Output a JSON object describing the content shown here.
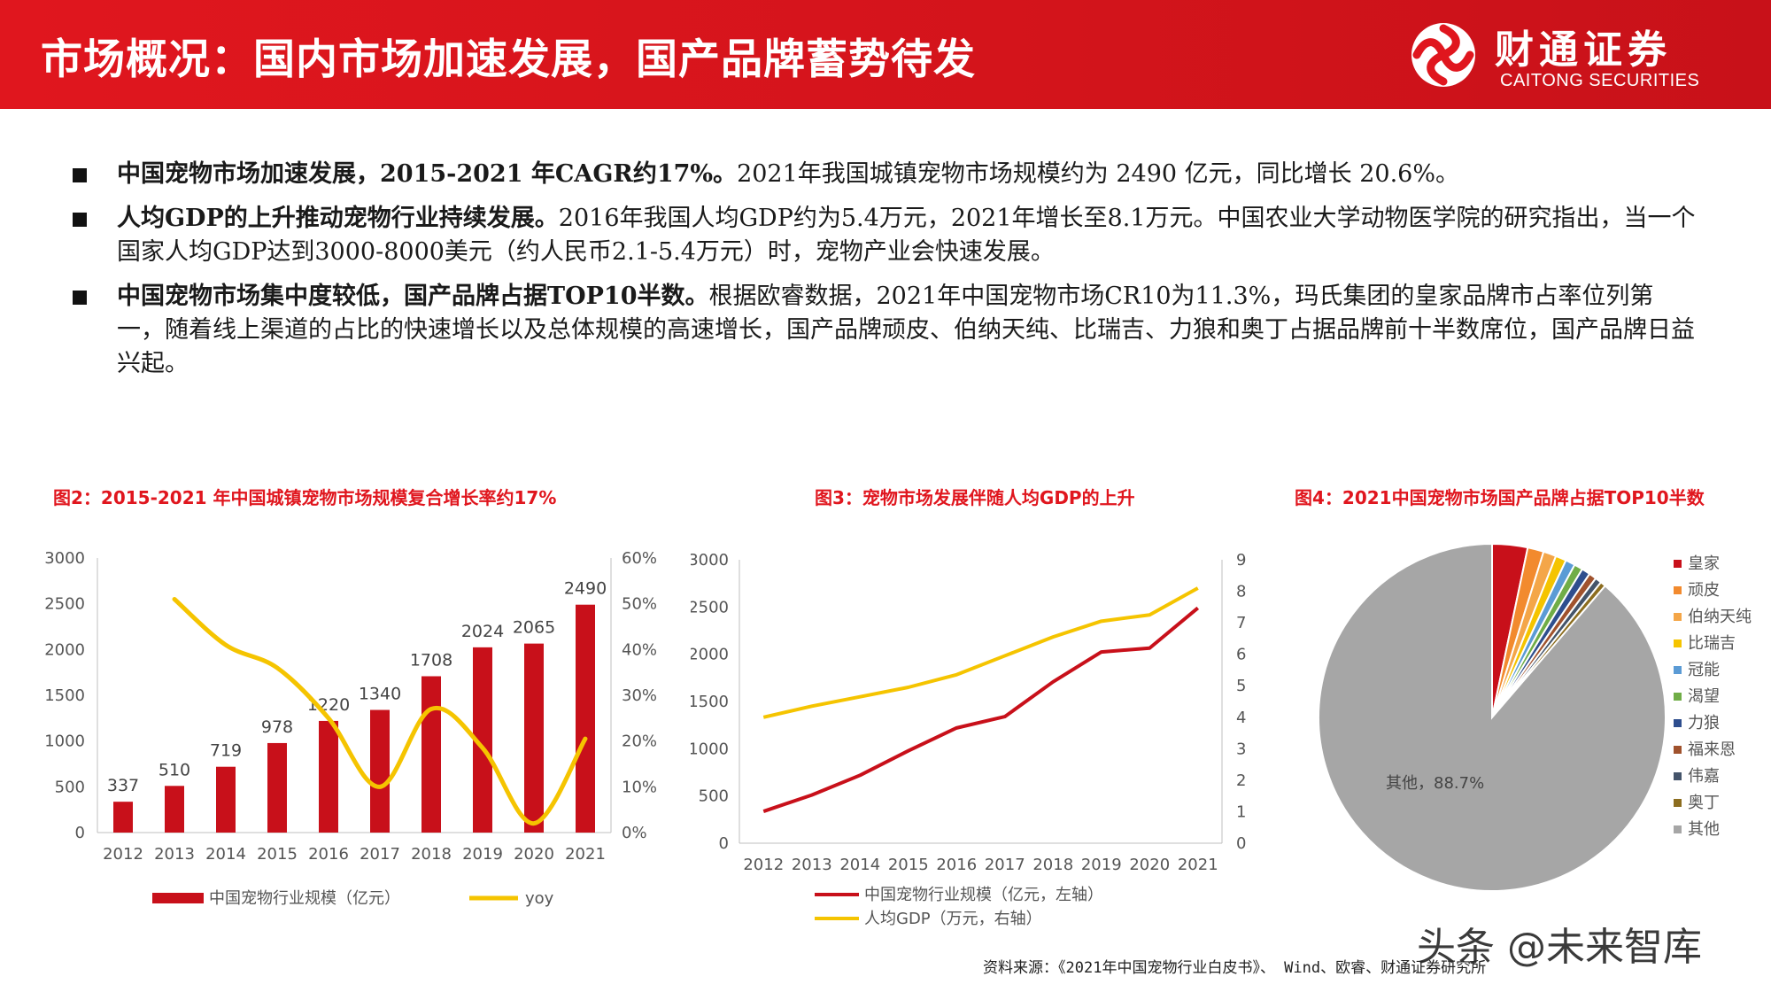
{
  "header": {
    "title": "市场概况：国内市场加速发展，国产品牌蓄势待发",
    "logo_cn": "财通证券",
    "logo_en": "CAITONG SECURITIES",
    "color": "#e0161e"
  },
  "bullets": [
    {
      "bold": "中国宠物市场加速发展，2015-2021 年CAGR约17%。",
      "text": "2021年我国城镇宠物市场规模约为 2490 亿元，同比增长 20.6%。"
    },
    {
      "bold": "人均GDP的上升推动宠物行业持续发展。",
      "text": "2016年我国人均GDP约为5.4万元，2021年增长至8.1万元。中国农业大学动物医学院的研究指出，当一个国家人均GDP达到3000-8000美元（约人民币2.1-5.4万元）时，宠物产业会快速发展。"
    },
    {
      "bold": "中国宠物市场集中度较低，国产品牌占据TOP10半数。",
      "text": "根据欧睿数据，2021年中国宠物市场CR10为11.3%，玛氏集团的皇家品牌市占率位列第一，随着线上渠道的占比的快速增长以及总体规模的高速增长，国产品牌顽皮、伯纳天纯、比瑞吉、力狼和奥丁占据品牌前十半数席位，国产品牌日益兴起。"
    }
  ],
  "figures": {
    "fig2_title": "图2：2015-2021 年中国城镇宠物市场规模复合增长率约17%",
    "fig3_title": "图3：宠物市场发展伴随人均GDP的上升",
    "fig4_title": "图4：2021中国宠物市场国产品牌占据TOP10半数"
  },
  "chart_data": [
    {
      "type": "bar",
      "title": "图2：2015-2021 年中国城镇宠物市场规模复合增长率约17%",
      "categories": [
        "2012",
        "2013",
        "2014",
        "2015",
        "2016",
        "2017",
        "2018",
        "2019",
        "2020",
        "2021"
      ],
      "series": [
        {
          "name": "中国宠物行业规模（亿元）",
          "type": "bar",
          "axis": "left",
          "color": "#c8101a",
          "values": [
            337,
            510,
            719,
            978,
            1220,
            1340,
            1708,
            2024,
            2065,
            2490
          ]
        },
        {
          "name": "yoy",
          "type": "line",
          "axis": "right",
          "color": "#f5c400",
          "values": [
            null,
            0.51,
            0.41,
            0.36,
            0.25,
            0.1,
            0.27,
            0.185,
            0.02,
            0.205
          ]
        }
      ],
      "y_left": {
        "ticks": [
          "0",
          "500",
          "1000",
          "1500",
          "2000",
          "2500",
          "3000"
        ],
        "range": [
          0,
          3000
        ]
      },
      "y_right": {
        "ticks": [
          "0%",
          "10%",
          "20%",
          "30%",
          "40%",
          "50%",
          "60%"
        ],
        "range": [
          0,
          0.6
        ]
      },
      "legend_position": "bottom"
    },
    {
      "type": "line",
      "title": "图3：宠物市场发展伴随人均GDP的上升",
      "categories": [
        "2012",
        "2013",
        "2014",
        "2015",
        "2016",
        "2017",
        "2018",
        "2019",
        "2020",
        "2021"
      ],
      "series": [
        {
          "name": "中国宠物行业规模（亿元，左轴）",
          "axis": "left",
          "color": "#c8101a",
          "values": [
            337,
            510,
            719,
            978,
            1220,
            1340,
            1708,
            2024,
            2065,
            2490
          ]
        },
        {
          "name": "人均GDP（万元，右轴）",
          "axis": "right",
          "color": "#f5c400",
          "values": [
            4.0,
            4.35,
            4.65,
            4.95,
            5.35,
            5.95,
            6.55,
            7.05,
            7.25,
            8.1
          ]
        }
      ],
      "y_left": {
        "ticks": [
          "0",
          "500",
          "1000",
          "1500",
          "2000",
          "2500",
          "3000"
        ],
        "range": [
          0,
          3000
        ]
      },
      "y_right": {
        "ticks": [
          "0",
          "1",
          "2",
          "3",
          "4",
          "5",
          "6",
          "7",
          "8",
          "9"
        ],
        "range": [
          0,
          9
        ]
      },
      "legend_position": "bottom"
    },
    {
      "type": "pie",
      "title": "图4：2021中国宠物市场国产品牌占据TOP10半数",
      "slice_label": "其他，88.7%",
      "slices": [
        {
          "name": "皇家",
          "value": 3.3,
          "color": "#c8101a"
        },
        {
          "name": "顽皮",
          "value": 1.5,
          "color": "#f28a2e"
        },
        {
          "name": "伯纳天纯",
          "value": 1.2,
          "color": "#f4a648"
        },
        {
          "name": "比瑞吉",
          "value": 1.0,
          "color": "#f5c400"
        },
        {
          "name": "冠能",
          "value": 0.9,
          "color": "#5b9bd5"
        },
        {
          "name": "渴望",
          "value": 0.8,
          "color": "#70ad47"
        },
        {
          "name": "力狼",
          "value": 0.8,
          "color": "#2e4e8e"
        },
        {
          "name": "福来恩",
          "value": 0.7,
          "color": "#a0522d"
        },
        {
          "name": "伟嘉",
          "value": 0.6,
          "color": "#44546a"
        },
        {
          "name": "奥丁",
          "value": 0.5,
          "color": "#8c6d1f"
        },
        {
          "name": "其他",
          "value": 88.7,
          "color": "#a6a6a6"
        }
      ],
      "legend_position": "right"
    }
  ],
  "footer": {
    "source": "资料来源：《2021年中国宠物行业白皮书》、 Wind、欧睿、财通证券研究所",
    "watermark": "头条 @未来智库"
  }
}
